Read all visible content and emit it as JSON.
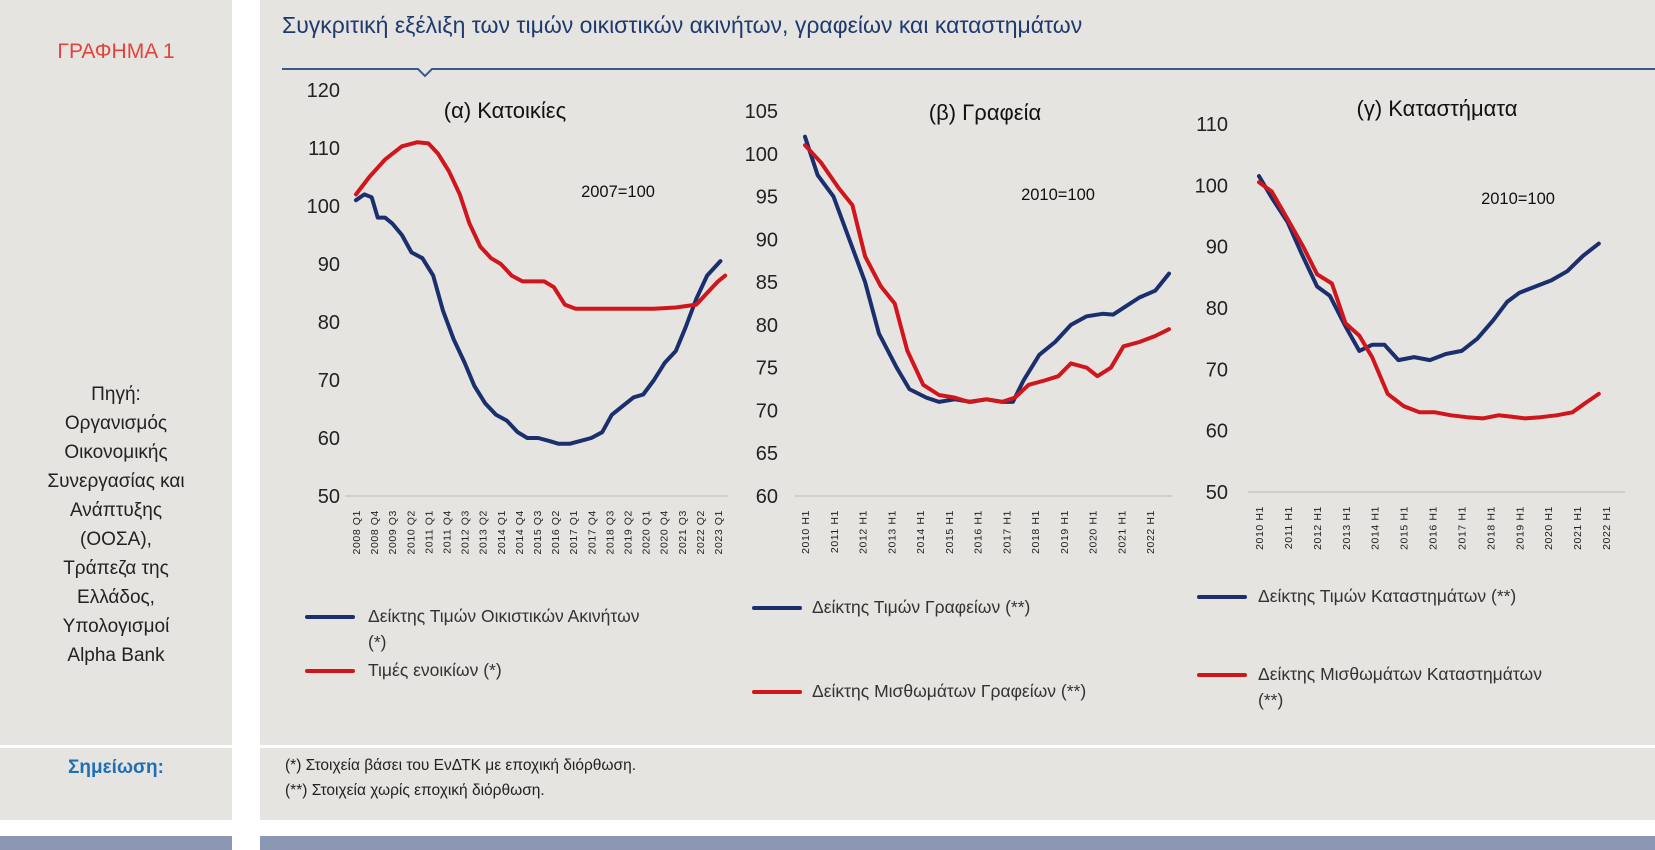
{
  "sidebar": {
    "figure_label": "ΓΡΑΦΗΜΑ 1",
    "source_lines": [
      "Πηγή:",
      "Οργανισμός",
      "Οικονομικής",
      "Συνεργασίας και",
      "Ανάπτυξης",
      "(ΟΟΣΑ),",
      "Τράπεζα της",
      "Ελλάδος,",
      "Υπολογισμοί",
      "Alpha Bank"
    ],
    "note_label": "Σημείωση:"
  },
  "header": {
    "title": "Συγκριτική εξέλιξη των τιμών οικιστικών ακινήτων, γραφείων και καταστημάτων"
  },
  "notes": [
    "(*) Στοιχεία βάσει του ΕνΔΤΚ με εποχική διόρθωση.",
    "(**) Στοιχεία χωρίς εποχική διόρθωση."
  ],
  "colors": {
    "blue": "#1b2f6e",
    "red": "#d0161c",
    "accent_red": "#e0453a",
    "title_blue": "#1f3a6e"
  },
  "chart_data": [
    {
      "type": "line",
      "title": "(α) Κατοικίες",
      "annotation": "2007=100",
      "ylim": [
        50,
        120
      ],
      "yticks": [
        "50",
        "60",
        "70",
        "80",
        "90",
        "100",
        "110",
        "120"
      ],
      "xlim": [
        2008.0,
        2023.0
      ],
      "xtick_labels": [
        "2008 Q1",
        "2008 Q4",
        "2009 Q3",
        "2010 Q2",
        "2011 Q1",
        "2011 Q4",
        "2012 Q3",
        "2013 Q2",
        "2014 Q1",
        "2014 Q4",
        "2015 Q3",
        "2016 Q2",
        "2017 Q1",
        "2017 Q4",
        "2018 Q3",
        "2019 Q2",
        "2020 Q1",
        "2020 Q4",
        "2021 Q3",
        "2022 Q2",
        "2023 Q1"
      ],
      "series": [
        {
          "name": "Δείκτης Τιμών Οικιστικών Ακινήτων",
          "name_suffix": "(*)",
          "color": "#1b2f6e",
          "x": [
            2008.0,
            2008.35,
            2008.65,
            2008.9,
            2009.2,
            2009.5,
            2009.9,
            2010.3,
            2010.75,
            2011.2,
            2011.6,
            2012.05,
            2012.5,
            2012.9,
            2013.35,
            2013.8,
            2014.25,
            2014.7,
            2015.1,
            2015.55,
            2016.0,
            2016.4,
            2016.85,
            2017.3,
            2017.75,
            2018.2,
            2018.6,
            2019.05,
            2019.5,
            2019.9,
            2020.35,
            2020.8,
            2021.25,
            2021.65,
            2022.1,
            2022.55,
            2023.1
          ],
          "y": [
            101,
            102,
            101.5,
            98,
            98,
            97,
            95,
            92,
            91,
            88,
            82,
            77,
            73,
            69,
            66,
            64,
            63,
            61,
            60,
            60,
            59.5,
            59,
            59,
            59.5,
            60,
            61,
            64,
            65.5,
            67,
            67.5,
            70,
            73,
            75,
            79,
            84,
            88,
            90.5
          ]
        },
        {
          "name": "Τιμές ενοικίων (*)",
          "color": "#d0161c",
          "x": [
            2008.0,
            2008.55,
            2009.2,
            2009.9,
            2010.55,
            2011.0,
            2011.4,
            2011.85,
            2012.3,
            2012.7,
            2013.15,
            2013.6,
            2014.0,
            2014.45,
            2014.9,
            2015.35,
            2015.8,
            2016.2,
            2016.65,
            2017.1,
            2017.75,
            2018.6,
            2019.5,
            2020.35,
            2021.25,
            2022.1,
            2022.55,
            2023.0,
            2023.3
          ],
          "y": [
            102,
            105,
            108,
            110.3,
            111,
            110.8,
            109,
            106,
            102,
            97,
            93,
            91,
            90,
            88,
            87,
            87,
            87,
            86,
            83,
            82.3,
            82.3,
            82.3,
            82.3,
            82.3,
            82.5,
            83,
            85,
            87,
            88
          ]
        }
      ]
    },
    {
      "type": "line",
      "title": "(β) Γραφεία",
      "annotation": "2010=100",
      "ylim": [
        60,
        105
      ],
      "yticks": [
        "60",
        "65",
        "70",
        "75",
        "80",
        "85",
        "90",
        "95",
        "100",
        "105"
      ],
      "xlim": [
        2010.0,
        2022.0
      ],
      "xtick_labels": [
        "2010 H1",
        "2011 H1",
        "2012 H1",
        "2013 H1",
        "2014 H1",
        "2015 H1",
        "2016 H1",
        "2017 H1",
        "2018 H1",
        "2019 H1",
        "2020 H1",
        "2021 H1",
        "2022 H1"
      ],
      "series": [
        {
          "name": "Δείκτης Τιμών Γραφείων (**)",
          "color": "#1b2f6e",
          "x": [
            2010.0,
            2010.44,
            2010.99,
            2011.54,
            2012.09,
            2012.57,
            2013.19,
            2013.63,
            2014.22,
            2014.66,
            2015.21,
            2015.76,
            2016.31,
            2016.86,
            2017.23,
            2017.6,
            2018.15,
            2018.7,
            2019.25,
            2019.8,
            2020.35,
            2020.72,
            2021.08,
            2021.63,
            2022.18,
            2022.66
          ],
          "y": [
            102,
            97.5,
            95,
            90,
            85,
            79,
            75,
            72.5,
            71.5,
            71,
            71.3,
            71,
            71.3,
            71,
            71,
            73.5,
            76.5,
            78,
            80,
            81,
            81.3,
            81.2,
            82,
            83.2,
            84,
            86
          ]
        },
        {
          "name": "Δείκτης Μισθωμάτων Γραφείων (**)",
          "color": "#d0161c",
          "x": [
            2010.0,
            2010.55,
            2011.17,
            2011.65,
            2012.09,
            2012.64,
            2013.12,
            2013.56,
            2014.11,
            2014.66,
            2015.21,
            2015.69,
            2016.31,
            2016.86,
            2017.3,
            2017.78,
            2018.33,
            2018.81,
            2019.25,
            2019.8,
            2020.17,
            2020.64,
            2021.08,
            2021.63,
            2022.18,
            2022.66
          ],
          "y": [
            101,
            99,
            96,
            94,
            88,
            84.5,
            82.5,
            77,
            73,
            71.8,
            71.5,
            71,
            71.3,
            71,
            71.5,
            73,
            73.5,
            74,
            75.5,
            75,
            74,
            75,
            77.5,
            78,
            78.7,
            79.5
          ]
        }
      ]
    },
    {
      "type": "line",
      "title": "(γ) Καταστήματα",
      "annotation": "2010=100",
      "ylim": [
        50,
        110
      ],
      "yticks": [
        "50",
        "60",
        "70",
        "80",
        "90",
        "100",
        "110"
      ],
      "xlim": [
        2010.0,
        2022.0
      ],
      "xtick_labels": [
        "2010 H1",
        "2011 H1",
        "2012 H1",
        "2013 H1",
        "2014 H1",
        "2015 H1",
        "2016 H1",
        "2017 H1",
        "2018 H1",
        "2019 H1",
        "2020 H1",
        "2021 H1",
        "2022 H1"
      ],
      "series": [
        {
          "name": "Δείκτης Τιμών Καταστημάτων (**)",
          "color": "#1b2f6e",
          "x": [
            2010.0,
            2010.44,
            2010.99,
            2011.46,
            2012.01,
            2012.45,
            2012.99,
            2013.47,
            2013.91,
            2014.34,
            2014.82,
            2015.36,
            2015.91,
            2016.46,
            2017.01,
            2017.55,
            2018.1,
            2018.58,
            2019.01,
            2019.56,
            2020.11,
            2020.66,
            2021.2,
            2021.75
          ],
          "y": [
            101.5,
            98,
            94,
            89,
            83.5,
            82,
            77,
            73,
            74,
            74,
            71.5,
            72,
            71.5,
            72.5,
            73,
            75,
            78,
            81,
            82.5,
            83.5,
            84.5,
            86,
            88.5,
            90.5
          ]
        },
        {
          "name": "Δείκτης Μισθωμάτων Καταστημάτων",
          "name_suffix": "(**)",
          "color": "#d0161c",
          "x": [
            2010.0,
            2010.44,
            2010.99,
            2011.53,
            2012.01,
            2012.52,
            2012.99,
            2013.47,
            2013.91,
            2014.45,
            2015.0,
            2015.55,
            2016.09,
            2016.64,
            2017.19,
            2017.74,
            2018.28,
            2018.72,
            2019.2,
            2019.74,
            2020.29,
            2020.84,
            2021.28,
            2021.75
          ],
          "y": [
            100.5,
            99,
            94.5,
            90,
            85.5,
            84,
            77.5,
            75.5,
            72,
            66,
            64,
            63,
            63,
            62.5,
            62.2,
            62,
            62.5,
            62.3,
            62,
            62.2,
            62.5,
            63,
            64.5,
            66
          ]
        }
      ]
    }
  ]
}
